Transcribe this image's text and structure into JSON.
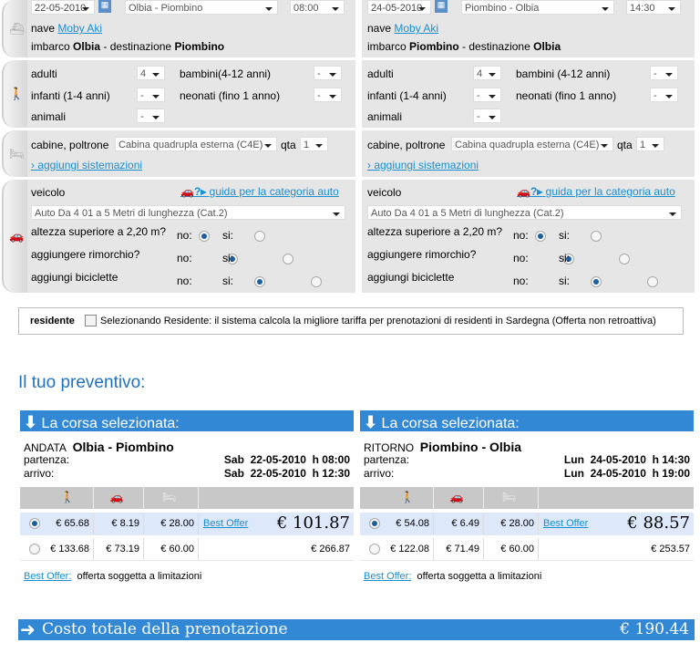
{
  "legs": [
    {
      "date": "22-05-2010",
      "route": "Olbia - Piombino",
      "time": "08:00",
      "ship_label": "nave",
      "ship": "Moby Aki",
      "imbarco": "imbarco",
      "from": "Olbia",
      "dest_label": "- destinazione",
      "to": "Piombino",
      "pax": {
        "adulti": "adulti",
        "adulti_val": "4",
        "bambini": "bambini(4-12 anni)",
        "bambini_val": "-",
        "infanti": "infanti (1-4 anni)",
        "infanti_val": "-",
        "neonati": "neonati (fino 1 anno)",
        "neonati_val": "-",
        "animali": "animali",
        "animali_val": "-"
      },
      "cabin_label": "cabine, poltrone",
      "cabin": "Cabina quadrupla esterna (C4E)",
      "qta_label": "qta",
      "qta": "1",
      "add_link": "› aggiungi sistemazioni",
      "veicolo": "veicolo",
      "guide": "guida per la categoria auto",
      "vehicle": "Auto Da 4 01 a 5 Metri di lunghezza (Cat.2)",
      "questions": [
        "altezza superiore a 2,20 m?",
        "aggiungere rimorchio?",
        "aggiungi biciclette"
      ],
      "no": "no:",
      "si": "si:"
    },
    {
      "date": "24-05-2010",
      "route": "Piombino - Olbia",
      "time": "14:30",
      "ship_label": "nave",
      "ship": "Moby Aki",
      "imbarco": "imbarco",
      "from": "Piombino",
      "dest_label": "- destinazione",
      "to": "Olbia",
      "pax": {
        "adulti": "adulti",
        "adulti_val": "4",
        "bambini": "bambini (4-12 anni)",
        "bambini_val": "-",
        "infanti": "infanti (1-4 anni)",
        "infanti_val": "-",
        "neonati": "neonati (fino 1 anno)",
        "neonati_val": "-",
        "animali": "animali",
        "animali_val": "-"
      },
      "cabin_label": "cabine, poltrone",
      "cabin": "Cabina quadrupla esterna (C4E)",
      "qta_label": "qta",
      "qta": "1",
      "add_link": "› aggiungi sistemazioni",
      "veicolo": "veicolo",
      "guide": "guida per la categoria auto",
      "vehicle": "Auto Da 4 01 a 5 Metri di lunghezza (Cat.2)",
      "questions": [
        "altezza superiore a 2,20 m?",
        "aggiungere rimorchio?",
        "aggiungi biciclette"
      ],
      "no": "no:",
      "si": "si:"
    }
  ],
  "resident": {
    "label": "residente",
    "text": "Selezionando Residente: il sistema calcola la migliore tariffa per prenotazioni di residenti in Sardegna (Offerta non retroattiva)"
  },
  "preventivo_title": "Il tuo preventivo:",
  "quotes": [
    {
      "header": "La corsa selezionata:",
      "dir": "ANDATA",
      "route": "Olbia - Piombino",
      "partenza_label": "partenza:",
      "partenza": "Sab  22-05-2010  h 08:00",
      "arrivo_label": "arrivo:",
      "arrivo": "Sab  22-05-2010  h 12:30",
      "rows": [
        {
          "pax": "€ 65.68",
          "car": "€ 8.19",
          "cabin": "€ 28.00",
          "offer": "Best Offer",
          "total": "€ 101.87",
          "selected": true
        },
        {
          "pax": "€ 133.68",
          "car": "€ 73.19",
          "cabin": "€ 60.00",
          "offer": "",
          "total": "€ 266.87",
          "selected": false
        }
      ],
      "note_link": "Best Offer:",
      "note": "offerta soggetta a limitazioni"
    },
    {
      "header": "La corsa selezionata:",
      "dir": "RITORNO",
      "route": "Piombino - Olbia",
      "partenza_label": "partenza:",
      "partenza": "Lun  24-05-2010  h 14:30",
      "arrivo_label": "arrivo:",
      "arrivo": "Lun  24-05-2010  h 19:00",
      "rows": [
        {
          "pax": "€ 54.08",
          "car": "€ 6.49",
          "cabin": "€ 28.00",
          "offer": "Best Offer",
          "total": "€ 88.57",
          "selected": true
        },
        {
          "pax": "€ 122.08",
          "car": "€ 71.49",
          "cabin": "€ 60.00",
          "offer": "",
          "total": "€ 253.57",
          "selected": false
        }
      ],
      "note_link": "Best Offer:",
      "note": "offerta soggetta a limitazioni"
    }
  ],
  "total": {
    "label": "Costo totale della prenotazione",
    "value": "€ 190.44"
  },
  "colors": {
    "accent": "#3388d6",
    "panel": "#e6e6e6",
    "link": "#1a8fd0",
    "selected_row": "#dde8fb"
  }
}
